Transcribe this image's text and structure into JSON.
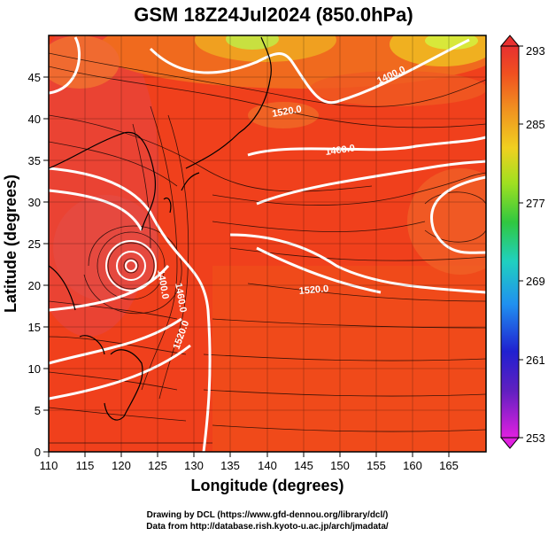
{
  "title": "GSM 18Z24Jul2024 (850.0hPa)",
  "xlabel": "Longitude (degrees)",
  "ylabel": "Latitude  (degrees)",
  "credit_line1": "Drawing by DCL (https://www.gfd-dennou.org/library/dcl/)",
  "credit_line2": "Data from http://database.rish.kyoto-u.ac.jp/arch/jmadata/",
  "x_ticks": [
    "110",
    "115",
    "120",
    "125",
    "130",
    "135",
    "140",
    "145",
    "150",
    "155",
    "160",
    "165"
  ],
  "y_ticks": [
    "0",
    "5",
    "10",
    "15",
    "20",
    "25",
    "30",
    "35",
    "40",
    "45"
  ],
  "colorbar": {
    "ticks": [
      "253",
      "261",
      "269",
      "277",
      "285",
      "293"
    ],
    "range": [
      253,
      293
    ],
    "colors": [
      "#e020e0",
      "#4020d0",
      "#2090f0",
      "#20d0c0",
      "#40d040",
      "#a0e020",
      "#f0e020",
      "#f0a020",
      "#f05020",
      "#e83030"
    ]
  },
  "contour_labels": [
    "1400.0",
    "1520.0",
    "1400.0",
    "1520.0",
    "1400.0",
    "1460.0",
    "1520.0"
  ],
  "map": {
    "lon_range": [
      110,
      170
    ],
    "lat_range": [
      0,
      50
    ],
    "field": "temperature",
    "overlays": [
      "geopotential-height-contours",
      "streamlines",
      "coastlines",
      "lat-lon-grid"
    ],
    "colors": {
      "warm": "#e63c28",
      "hot": "#f0401c",
      "mild": "#f07a1e",
      "cool": "#b8e63c",
      "contour": "#ffffff",
      "grid": "#000000"
    }
  }
}
